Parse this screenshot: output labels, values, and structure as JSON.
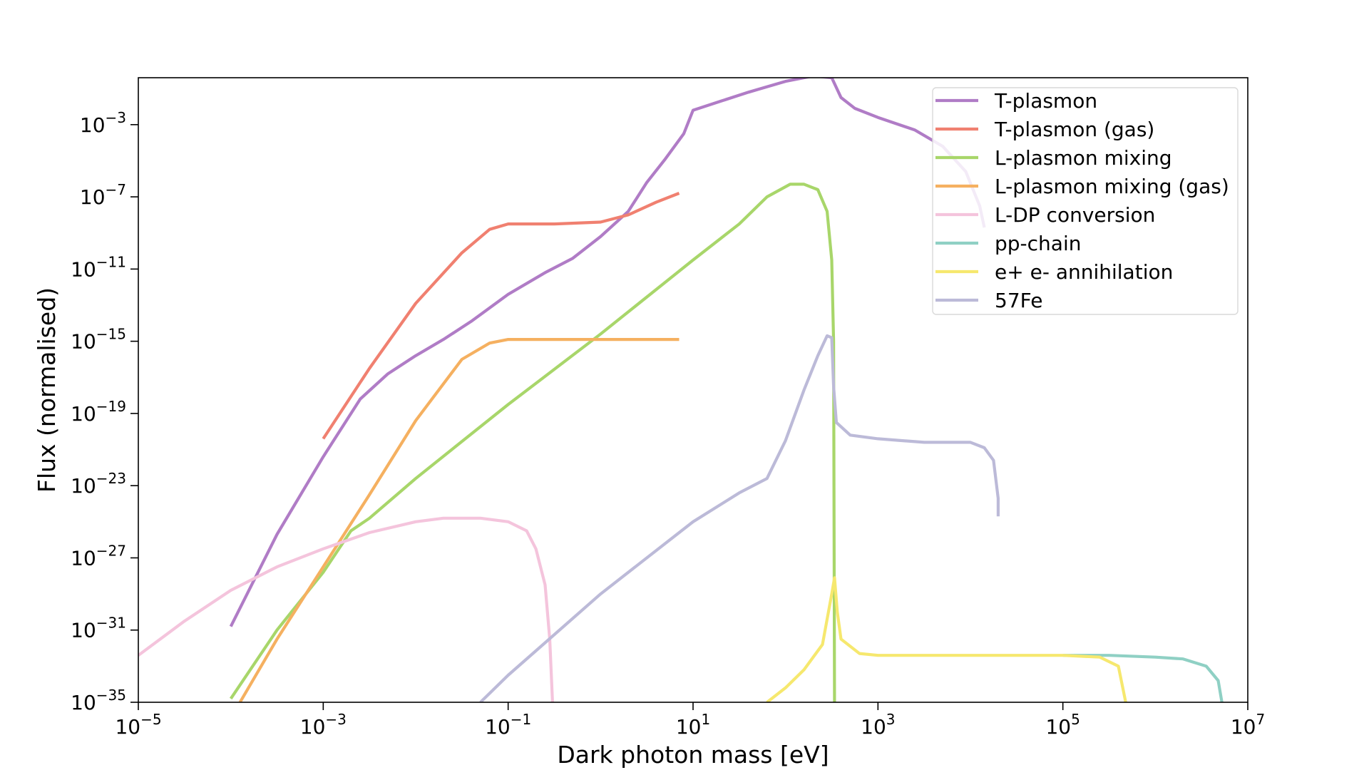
{
  "chart_data": {
    "type": "line",
    "title": "",
    "xlabel": "Dark photon mass [eV]",
    "ylabel": "Flux (normalised)",
    "xscale": "log",
    "yscale": "log",
    "xlim_log10": [
      -5,
      7
    ],
    "ylim_log10": [
      -35,
      -0.4
    ],
    "x_ticks": [
      {
        "base": "10",
        "exp": "−5",
        "log10": -5
      },
      {
        "base": "10",
        "exp": "−3",
        "log10": -3
      },
      {
        "base": "10",
        "exp": "−1",
        "log10": -1
      },
      {
        "base": "10",
        "exp": "1",
        "log10": 1
      },
      {
        "base": "10",
        "exp": "3",
        "log10": 3
      },
      {
        "base": "10",
        "exp": "5",
        "log10": 5
      },
      {
        "base": "10",
        "exp": "7",
        "log10": 7
      }
    ],
    "y_ticks": [
      {
        "base": "10",
        "exp": "−3",
        "log10": -3
      },
      {
        "base": "10",
        "exp": "−7",
        "log10": -7
      },
      {
        "base": "10",
        "exp": "−11",
        "log10": -11
      },
      {
        "base": "10",
        "exp": "−15",
        "log10": -15
      },
      {
        "base": "10",
        "exp": "−19",
        "log10": -19
      },
      {
        "base": "10",
        "exp": "−23",
        "log10": -23
      },
      {
        "base": "10",
        "exp": "−27",
        "log10": -27
      },
      {
        "base": "10",
        "exp": "−31",
        "log10": -31
      },
      {
        "base": "10",
        "exp": "−35",
        "log10": -35
      }
    ],
    "legend_position": "top-right",
    "series": [
      {
        "name": "T-plasmon",
        "color": "#b07cc6",
        "points_log10": [
          [
            -4,
            -30.8
          ],
          [
            -3.5,
            -25.7
          ],
          [
            -3,
            -21.4
          ],
          [
            -2.6,
            -18.2
          ],
          [
            -2.3,
            -16.8
          ],
          [
            -2,
            -15.8
          ],
          [
            -1.7,
            -14.9
          ],
          [
            -1.4,
            -13.9
          ],
          [
            -1,
            -12.4
          ],
          [
            -0.6,
            -11.2
          ],
          [
            -0.3,
            -10.4
          ],
          [
            0,
            -9.2
          ],
          [
            0.3,
            -7.8
          ],
          [
            0.5,
            -6.2
          ],
          [
            0.7,
            -4.9
          ],
          [
            0.9,
            -3.5
          ],
          [
            1,
            -2.2
          ],
          [
            1.3,
            -1.7
          ],
          [
            1.6,
            -1.2
          ],
          [
            2,
            -0.6
          ],
          [
            2.3,
            -0.3
          ],
          [
            2.5,
            -0.4
          ],
          [
            2.6,
            -1.5
          ],
          [
            2.75,
            -2.1
          ],
          [
            3,
            -2.6
          ],
          [
            3.4,
            -3.3
          ],
          [
            3.7,
            -4.2
          ],
          [
            3.95,
            -5.6
          ],
          [
            4.1,
            -7.5
          ],
          [
            4.15,
            -8.7
          ]
        ]
      },
      {
        "name": "T-plasmon (gas)",
        "color": "#f08070",
        "points_log10": [
          [
            -3,
            -20.4
          ],
          [
            -2.5,
            -16.5
          ],
          [
            -2,
            -12.9
          ],
          [
            -1.5,
            -10.1
          ],
          [
            -1.2,
            -8.8
          ],
          [
            -1,
            -8.5
          ],
          [
            -0.5,
            -8.5
          ],
          [
            0,
            -8.4
          ],
          [
            0.3,
            -8.0
          ],
          [
            0.6,
            -7.3
          ],
          [
            0.85,
            -6.8
          ]
        ]
      },
      {
        "name": "L-plasmon mixing",
        "color": "#a8d66a",
        "points_log10": [
          [
            -4,
            -34.8
          ],
          [
            -3.5,
            -31.0
          ],
          [
            -3,
            -27.8
          ],
          [
            -2.7,
            -25.5
          ],
          [
            -2.5,
            -24.8
          ],
          [
            -2,
            -22.6
          ],
          [
            -1,
            -18.5
          ],
          [
            0,
            -14.6
          ],
          [
            1,
            -10.5
          ],
          [
            1.5,
            -8.5
          ],
          [
            1.8,
            -7.0
          ],
          [
            2.05,
            -6.3
          ],
          [
            2.2,
            -6.3
          ],
          [
            2.35,
            -6.6
          ],
          [
            2.45,
            -7.8
          ],
          [
            2.5,
            -10.5
          ],
          [
            2.52,
            -15.0
          ],
          [
            2.53,
            -35.0
          ]
        ]
      },
      {
        "name": "L-plasmon mixing (gas)",
        "color": "#f5b060",
        "points_log10": [
          [
            -3.9,
            -35.0
          ],
          [
            -3.5,
            -31.5
          ],
          [
            -3,
            -27.5
          ],
          [
            -2.5,
            -23.5
          ],
          [
            -2,
            -19.4
          ],
          [
            -1.5,
            -16.0
          ],
          [
            -1.2,
            -15.1
          ],
          [
            -1,
            -14.9
          ],
          [
            0,
            -14.9
          ],
          [
            0.85,
            -14.9
          ]
        ]
      },
      {
        "name": "L-DP conversion",
        "color": "#f4c4dc",
        "points_log10": [
          [
            -5,
            -32.4
          ],
          [
            -4.5,
            -30.5
          ],
          [
            -4,
            -28.8
          ],
          [
            -3.5,
            -27.5
          ],
          [
            -3,
            -26.5
          ],
          [
            -2.5,
            -25.6
          ],
          [
            -2,
            -25.0
          ],
          [
            -1.7,
            -24.8
          ],
          [
            -1.3,
            -24.8
          ],
          [
            -1,
            -25.0
          ],
          [
            -0.8,
            -25.5
          ],
          [
            -0.7,
            -26.5
          ],
          [
            -0.6,
            -28.5
          ],
          [
            -0.55,
            -31.5
          ],
          [
            -0.52,
            -35.0
          ]
        ]
      },
      {
        "name": "pp-chain",
        "color": "#8fd0c4",
        "points_log10": [
          [
            5,
            -32.4
          ],
          [
            5.5,
            -32.4
          ],
          [
            6,
            -32.5
          ],
          [
            6.3,
            -32.6
          ],
          [
            6.55,
            -33.0
          ],
          [
            6.68,
            -33.8
          ],
          [
            6.72,
            -35.0
          ]
        ]
      },
      {
        "name": "e+ e- annihilation",
        "color": "#f6e86e",
        "points_log10": [
          [
            1.8,
            -35.0
          ],
          [
            2.0,
            -34.2
          ],
          [
            2.2,
            -33.2
          ],
          [
            2.4,
            -31.8
          ],
          [
            2.5,
            -29.0
          ],
          [
            2.53,
            -28.1
          ],
          [
            2.56,
            -30.0
          ],
          [
            2.6,
            -31.5
          ],
          [
            2.8,
            -32.3
          ],
          [
            3,
            -32.4
          ],
          [
            4,
            -32.4
          ],
          [
            5,
            -32.4
          ],
          [
            5.4,
            -32.5
          ],
          [
            5.6,
            -33.0
          ],
          [
            5.68,
            -35.0
          ]
        ]
      },
      {
        "name": "57Fe",
        "color": "#bcbad8",
        "points_log10": [
          [
            -1.3,
            -35.0
          ],
          [
            -1,
            -33.5
          ],
          [
            0,
            -29.0
          ],
          [
            1,
            -25.0
          ],
          [
            1.5,
            -23.4
          ],
          [
            1.8,
            -22.6
          ],
          [
            2,
            -20.5
          ],
          [
            2.2,
            -17.7
          ],
          [
            2.35,
            -15.8
          ],
          [
            2.45,
            -14.7
          ],
          [
            2.5,
            -14.8
          ],
          [
            2.52,
            -17.5
          ],
          [
            2.55,
            -19.5
          ],
          [
            2.7,
            -20.2
          ],
          [
            3,
            -20.4
          ],
          [
            3.5,
            -20.6
          ],
          [
            4,
            -20.6
          ],
          [
            4.15,
            -20.9
          ],
          [
            4.25,
            -21.6
          ],
          [
            4.3,
            -23.7
          ],
          [
            4.3,
            -24.7
          ]
        ]
      }
    ]
  }
}
